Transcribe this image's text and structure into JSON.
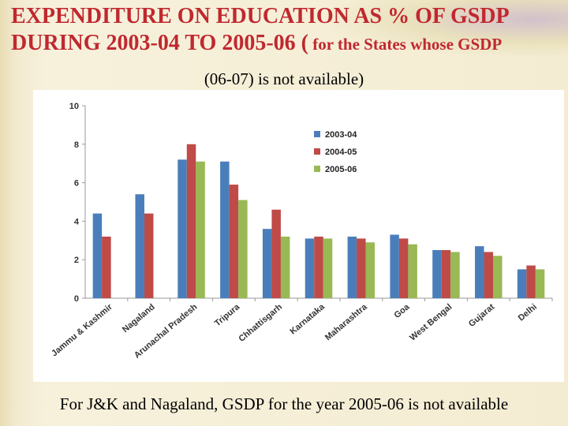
{
  "slide": {
    "title_main": "EXPENDITURE ON EDUCATION AS % OF GSDP DURING 2003-04 TO 2005-06 (",
    "title_small": " for the States whose GSDP",
    "subtitle": "(06-07) is not available)",
    "footnote": "For J&K and Nagaland, GSDP for the year 2005-06 is not available"
  },
  "chart_data": {
    "type": "bar",
    "categories": [
      "Jammu & Kashmir",
      "Nagaland",
      "Arunachal Pradesh",
      "Tripura",
      "Chhattisgarh",
      "Karnataka",
      "Maharashtra",
      "Goa",
      "West Bengal",
      "Gujarat",
      "Delhi"
    ],
    "series": [
      {
        "name": "2003-04",
        "color": "#4a7ebb",
        "values": [
          4.4,
          5.4,
          7.2,
          7.1,
          3.6,
          3.1,
          3.2,
          3.3,
          2.5,
          2.7,
          1.5
        ]
      },
      {
        "name": "2004-05",
        "color": "#be4b48",
        "values": [
          3.2,
          4.4,
          8.0,
          5.9,
          4.6,
          3.2,
          3.1,
          3.1,
          2.5,
          2.4,
          1.7
        ]
      },
      {
        "name": "2005-06",
        "color": "#98b954",
        "values": [
          null,
          null,
          7.1,
          5.1,
          3.2,
          3.1,
          2.9,
          2.8,
          2.4,
          2.2,
          1.5
        ]
      }
    ],
    "yticks": [
      0,
      2,
      4,
      6,
      8,
      10
    ],
    "ylim": [
      0,
      10
    ],
    "grid": false,
    "legend_position": "top-center"
  }
}
